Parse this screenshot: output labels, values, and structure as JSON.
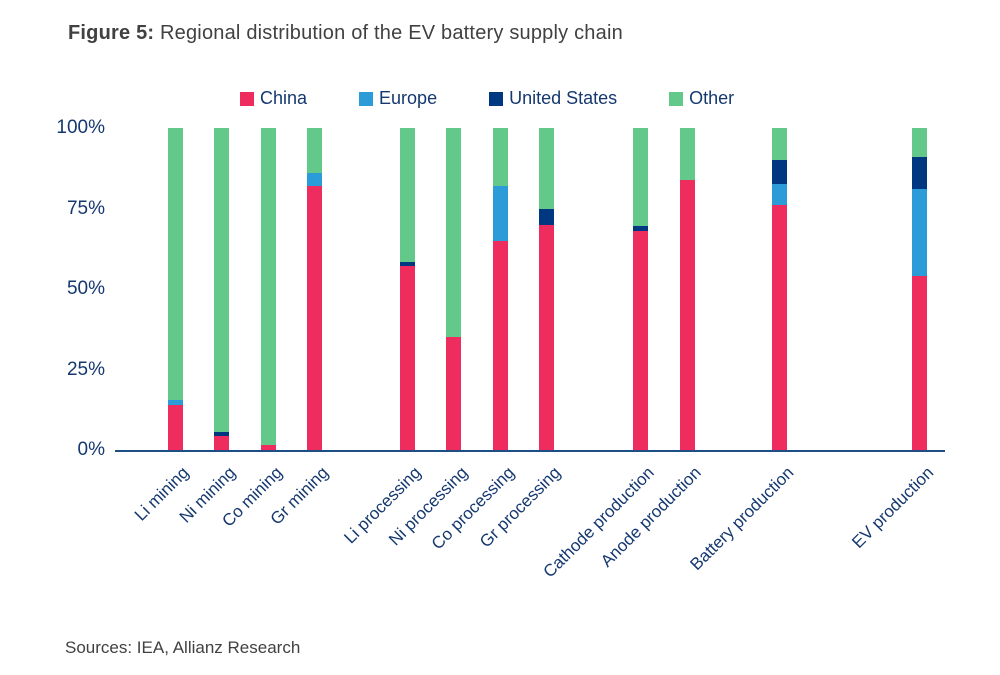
{
  "title": {
    "prefix": "Figure 5:",
    "text": " Regional distribution of the EV battery supply chain"
  },
  "source": "Sources: IEA, Allianz Research",
  "colors": {
    "china": "#ee2c5e",
    "europe": "#2b9cd8",
    "united_states": "#003781",
    "other": "#62c98b",
    "axis_text": "#14386f",
    "title_text": "#414141",
    "baseline": "#1d4f86"
  },
  "chart_data": {
    "type": "bar",
    "stacked": true,
    "title": "Figure 5: Regional distribution of the EV battery supply chain",
    "xlabel": "",
    "ylabel": "",
    "ylim": [
      0,
      100
    ],
    "grid": false,
    "legend_position": "top",
    "stack_order_bottom_to_top": [
      "China",
      "Europe",
      "United States",
      "Other"
    ],
    "categories": [
      "Li mining",
      "Ni mining",
      "Co mining",
      "Gr mining",
      "Li processing",
      "Ni processing",
      "Co processing",
      "Gr processing",
      "Cathode production",
      "Anode production",
      "Battery production",
      "EV production"
    ],
    "series": [
      {
        "name": "China",
        "color": "#ee2c5e",
        "values": [
          14,
          4.5,
          1.5,
          82,
          57,
          35,
          65,
          70,
          68,
          84,
          76,
          54
        ]
      },
      {
        "name": "Europe",
        "color": "#2b9cd8",
        "values": [
          1.5,
          0,
          0,
          4,
          0,
          0,
          17,
          0,
          0,
          0,
          6.5,
          27
        ]
      },
      {
        "name": "United States",
        "color": "#003781",
        "values": [
          0,
          1,
          0,
          0,
          1.5,
          0,
          0,
          5,
          1.5,
          0,
          7.5,
          10
        ]
      },
      {
        "name": "Other",
        "color": "#62c98b",
        "values": [
          84.5,
          94.5,
          98.5,
          14,
          41.5,
          65,
          18,
          25,
          30.5,
          16,
          10,
          9
        ]
      }
    ],
    "yticks": [
      {
        "value": 100,
        "label": "100%"
      },
      {
        "value": 75,
        "label": "75%"
      },
      {
        "value": 50,
        "label": "50%"
      },
      {
        "value": 25,
        "label": "25%"
      },
      {
        "value": 0,
        "label": "0%"
      }
    ]
  }
}
